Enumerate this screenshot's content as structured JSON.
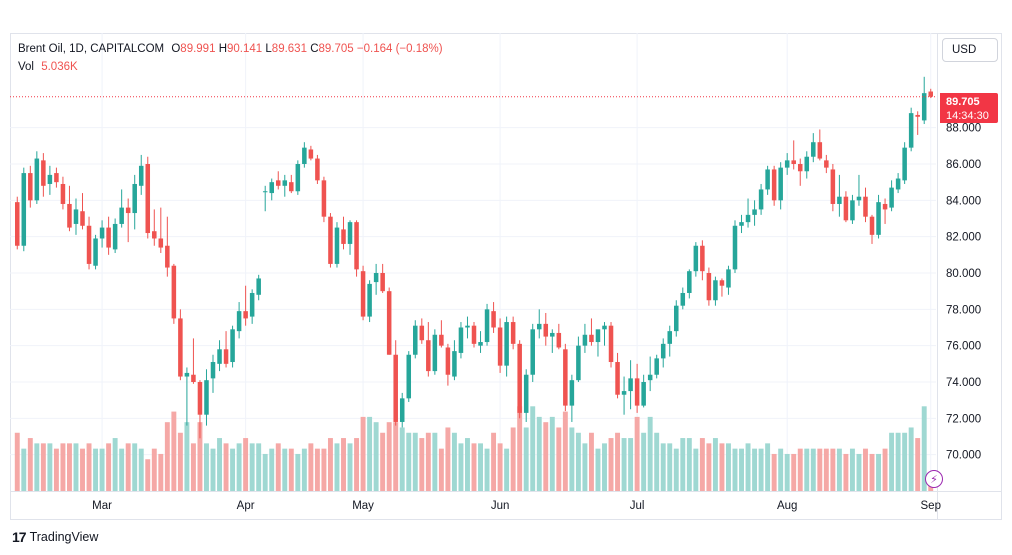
{
  "legend": {
    "symbol": "Brent Oil, 1D, CAPITALCOM",
    "o_label": "O",
    "o_value": "89.991",
    "h_label": "H",
    "h_value": "90.141",
    "l_label": "L",
    "l_value": "89.631",
    "c_label": "C",
    "c_value": "89.705",
    "change": "−0.164 (−0.18%)",
    "vol_label": "Vol",
    "vol_value": "5.036K"
  },
  "currency_button": "USD",
  "last_price": {
    "value": "89.705",
    "countdown": "14:34:30"
  },
  "brand": {
    "logo": "17",
    "name": "TradingView"
  },
  "colors": {
    "up": "#26a69a",
    "down": "#ef5350",
    "vol_up": "#9fd8d2",
    "vol_down": "#f5a8a6",
    "price_tag": "#f23645",
    "grid": "#f0f3fa"
  },
  "chart_data": {
    "type": "candlestick",
    "y_axis": {
      "min": 68,
      "max": 92,
      "ticks": [
        "70.000",
        "72.000",
        "74.000",
        "76.000",
        "78.000",
        "80.000",
        "82.000",
        "84.000",
        "86.000",
        "88.000"
      ]
    },
    "x_axis": {
      "ticks": [
        {
          "label": "Mar",
          "index": 13
        },
        {
          "label": "Apr",
          "index": 35
        },
        {
          "label": "May",
          "index": 53
        },
        {
          "label": "Jun",
          "index": 74
        },
        {
          "label": "Jul",
          "index": 95
        },
        {
          "label": "Aug",
          "index": 118
        },
        {
          "label": "Sep",
          "index": 140
        }
      ]
    },
    "candles_ohlcv": [
      [
        83.9,
        84.2,
        81.3,
        81.5,
        1.1
      ],
      [
        81.5,
        85.8,
        81.2,
        85.5,
        0.8
      ],
      [
        85.5,
        85.9,
        83.6,
        84.0,
        1.0
      ],
      [
        84.0,
        86.7,
        83.8,
        86.3,
        0.9
      ],
      [
        86.2,
        86.6,
        84.2,
        84.8,
        0.9
      ],
      [
        84.9,
        85.9,
        84.3,
        85.4,
        0.9
      ],
      [
        85.5,
        85.8,
        84.7,
        85.0,
        0.8
      ],
      [
        84.9,
        85.3,
        83.5,
        83.8,
        0.9
      ],
      [
        83.8,
        84.8,
        82.3,
        82.5,
        0.9
      ],
      [
        82.7,
        84.1,
        82.1,
        83.5,
        0.9
      ],
      [
        83.4,
        84.4,
        82.4,
        82.6,
        0.8
      ],
      [
        82.6,
        83.1,
        80.2,
        80.5,
        0.9
      ],
      [
        80.4,
        82.1,
        80.2,
        81.9,
        0.8
      ],
      [
        81.9,
        82.9,
        81.4,
        82.5,
        0.8
      ],
      [
        82.5,
        83.1,
        81.0,
        81.4,
        0.9
      ],
      [
        81.3,
        83.0,
        81.1,
        82.7,
        1.0
      ],
      [
        82.7,
        84.6,
        82.5,
        83.6,
        0.8
      ],
      [
        83.6,
        84.1,
        81.7,
        83.3,
        0.9
      ],
      [
        83.3,
        85.4,
        82.4,
        84.9,
        0.9
      ],
      [
        84.8,
        86.5,
        84.3,
        85.9,
        0.8
      ],
      [
        86.0,
        86.4,
        81.9,
        82.2,
        0.6
      ],
      [
        82.3,
        83.5,
        81.5,
        81.9,
        0.8
      ],
      [
        81.9,
        83.6,
        81.1,
        81.4,
        0.7
      ],
      [
        81.5,
        83.1,
        79.8,
        80.3,
        1.3
      ],
      [
        80.4,
        80.5,
        77.2,
        77.5,
        1.5
      ],
      [
        77.5,
        78.0,
        74.1,
        74.3,
        1.1
      ],
      [
        74.3,
        74.8,
        71.6,
        74.5,
        1.3
      ],
      [
        74.4,
        76.4,
        73.9,
        74.0,
        0.9
      ],
      [
        74.0,
        74.1,
        70.9,
        72.2,
        1.3
      ],
      [
        72.2,
        74.7,
        71.6,
        74.1,
        0.9
      ],
      [
        74.2,
        75.5,
        73.4,
        75.1,
        0.8
      ],
      [
        75.0,
        76.3,
        74.6,
        75.8,
        1.0
      ],
      [
        75.8,
        76.8,
        74.8,
        75.0,
        0.9
      ],
      [
        75.1,
        77.1,
        74.8,
        76.9,
        0.8
      ],
      [
        76.8,
        78.4,
        76.4,
        77.9,
        0.9
      ],
      [
        77.9,
        79.3,
        77.1,
        77.5,
        1.0
      ],
      [
        77.6,
        79.1,
        77.2,
        78.9,
        0.9
      ],
      [
        78.8,
        79.9,
        78.5,
        79.7,
        0.9
      ],
      [
        84.5,
        84.8,
        83.4,
        84.5,
        0.7
      ],
      [
        84.4,
        85.2,
        84.0,
        85.0,
        0.8
      ],
      [
        85.1,
        85.6,
        84.6,
        84.8,
        0.9
      ],
      [
        84.8,
        85.4,
        84.2,
        85.1,
        0.8
      ],
      [
        85.0,
        85.4,
        84.4,
        84.5,
        0.8
      ],
      [
        84.5,
        86.2,
        84.3,
        86.0,
        0.7
      ],
      [
        86.0,
        87.2,
        85.8,
        86.9,
        0.8
      ],
      [
        86.8,
        87.0,
        86.2,
        86.3,
        0.9
      ],
      [
        86.3,
        86.5,
        84.9,
        85.1,
        0.8
      ],
      [
        85.1,
        85.3,
        82.8,
        83.1,
        0.8
      ],
      [
        83.1,
        83.3,
        80.3,
        80.5,
        1.0
      ],
      [
        80.5,
        82.8,
        80.3,
        82.5,
        0.9
      ],
      [
        82.4,
        83.1,
        81.3,
        81.6,
        1.0
      ],
      [
        81.6,
        82.9,
        81.0,
        82.8,
        0.9
      ],
      [
        82.8,
        82.9,
        79.8,
        80.2,
        1.0
      ],
      [
        80.1,
        80.4,
        77.4,
        77.6,
        1.4
      ],
      [
        77.6,
        79.6,
        77.3,
        79.4,
        1.4
      ],
      [
        79.5,
        80.5,
        78.8,
        80.0,
        1.3
      ],
      [
        80.0,
        80.5,
        78.9,
        79.0,
        1.1
      ],
      [
        79.0,
        79.2,
        75.5,
        75.5,
        1.3
      ],
      [
        75.5,
        76.3,
        71.6,
        71.8,
        1.3
      ],
      [
        71.8,
        73.4,
        71.5,
        73.1,
        1.2
      ],
      [
        73.1,
        75.7,
        72.9,
        75.5,
        1.1
      ],
      [
        75.5,
        77.4,
        75.3,
        77.1,
        1.1
      ],
      [
        77.1,
        77.5,
        76.1,
        76.3,
        1.0
      ],
      [
        76.3,
        77.3,
        74.3,
        74.6,
        1.1
      ],
      [
        74.6,
        76.9,
        74.4,
        76.6,
        1.1
      ],
      [
        76.6,
        77.4,
        75.9,
        76.0,
        0.8
      ],
      [
        75.9,
        76.1,
        73.8,
        74.4,
        1.2
      ],
      [
        74.3,
        76.3,
        74.1,
        75.7,
        1.1
      ],
      [
        75.6,
        77.3,
        75.3,
        77.0,
        0.9
      ],
      [
        77.0,
        77.6,
        76.4,
        77.1,
        1.0
      ],
      [
        77.1,
        77.3,
        75.9,
        76.1,
        0.9
      ],
      [
        76.0,
        76.8,
        75.6,
        76.2,
        0.9
      ],
      [
        76.2,
        78.3,
        76.0,
        78.0,
        0.8
      ],
      [
        77.9,
        78.4,
        76.7,
        77.0,
        1.1
      ],
      [
        77.0,
        77.5,
        74.5,
        74.9,
        0.9
      ],
      [
        74.9,
        77.6,
        74.3,
        77.3,
        0.8
      ],
      [
        77.3,
        77.6,
        75.8,
        76.1,
        1.2
      ],
      [
        76.1,
        76.3,
        72.0,
        72.3,
        1.6
      ],
      [
        72.3,
        74.7,
        71.8,
        74.4,
        1.2
      ],
      [
        74.4,
        77.2,
        74.0,
        76.9,
        1.6
      ],
      [
        76.9,
        78.0,
        76.4,
        77.2,
        1.4
      ],
      [
        77.2,
        77.8,
        76.0,
        76.5,
        1.3
      ],
      [
        76.5,
        76.9,
        75.6,
        76.7,
        1.4
      ],
      [
        76.7,
        77.2,
        75.8,
        75.9,
        1.2
      ],
      [
        75.8,
        76.1,
        72.4,
        72.7,
        1.5
      ],
      [
        72.7,
        74.4,
        71.8,
        74.1,
        1.2
      ],
      [
        74.1,
        76.5,
        74.0,
        76.0,
        1.1
      ],
      [
        76.0,
        77.2,
        75.6,
        76.6,
        0.9
      ],
      [
        76.6,
        77.5,
        76.0,
        76.2,
        1.1
      ],
      [
        76.2,
        76.5,
        75.4,
        76.9,
        0.8
      ],
      [
        76.9,
        77.3,
        76.0,
        77.1,
        0.9
      ],
      [
        77.1,
        77.3,
        74.8,
        75.1,
        1.0
      ],
      [
        75.1,
        75.6,
        73.1,
        73.3,
        1.1
      ],
      [
        73.3,
        74.3,
        72.2,
        73.5,
        1.0
      ],
      [
        73.5,
        75.2,
        72.5,
        74.2,
        1.0
      ],
      [
        74.2,
        75.0,
        72.3,
        72.7,
        1.4
      ],
      [
        72.7,
        74.4,
        72.6,
        74.0,
        1.1
      ],
      [
        74.1,
        75.4,
        73.5,
        74.4,
        1.4
      ],
      [
        74.4,
        75.5,
        74.2,
        75.3,
        1.1
      ],
      [
        75.3,
        76.4,
        74.8,
        76.1,
        0.9
      ],
      [
        76.1,
        77.1,
        75.4,
        76.8,
        0.9
      ],
      [
        76.8,
        78.5,
        76.5,
        78.2,
        0.8
      ],
      [
        78.2,
        79.2,
        78.0,
        78.9,
        1.0
      ],
      [
        78.9,
        80.2,
        78.6,
        80.1,
        1.0
      ],
      [
        80.1,
        81.7,
        79.8,
        81.5,
        0.8
      ],
      [
        81.5,
        81.8,
        79.6,
        80.1,
        1.0
      ],
      [
        80.0,
        80.3,
        78.2,
        78.5,
        0.9
      ],
      [
        78.5,
        79.8,
        78.2,
        79.6,
        1.0
      ],
      [
        79.6,
        79.7,
        78.7,
        79.3,
        0.9
      ],
      [
        79.2,
        80.4,
        78.8,
        80.2,
        0.9
      ],
      [
        80.2,
        82.9,
        80.0,
        82.6,
        0.8
      ],
      [
        82.6,
        83.2,
        82.2,
        82.8,
        0.8
      ],
      [
        82.8,
        84.1,
        82.5,
        83.2,
        0.9
      ],
      [
        83.2,
        84.0,
        82.6,
        83.5,
        0.8
      ],
      [
        83.5,
        84.9,
        83.2,
        84.6,
        0.8
      ],
      [
        84.6,
        85.9,
        84.3,
        85.7,
        0.9
      ],
      [
        85.7,
        85.9,
        83.7,
        84.0,
        0.7
      ],
      [
        84.0,
        86.1,
        83.5,
        85.8,
        0.8
      ],
      [
        85.8,
        86.6,
        85.4,
        86.2,
        0.7
      ],
      [
        86.2,
        87.3,
        85.7,
        86.0,
        0.7
      ],
      [
        86.0,
        86.3,
        84.8,
        85.6,
        0.8
      ],
      [
        85.6,
        86.7,
        85.2,
        86.4,
        0.8
      ],
      [
        86.4,
        87.7,
        86.1,
        87.2,
        0.8
      ],
      [
        87.2,
        87.9,
        86.2,
        86.3,
        0.8
      ],
      [
        86.2,
        86.5,
        85.5,
        85.8,
        0.8
      ],
      [
        85.7,
        86.0,
        83.4,
        83.8,
        0.8
      ],
      [
        83.8,
        85.4,
        83.1,
        84.2,
        0.8
      ],
      [
        84.2,
        84.5,
        82.8,
        82.9,
        0.7
      ],
      [
        82.9,
        84.3,
        82.7,
        84.0,
        0.8
      ],
      [
        84.0,
        85.4,
        83.7,
        84.2,
        0.7
      ],
      [
        84.2,
        84.7,
        82.8,
        83.1,
        0.8
      ],
      [
        83.1,
        83.2,
        81.6,
        82.1,
        0.7
      ],
      [
        82.1,
        84.3,
        81.9,
        83.9,
        0.7
      ],
      [
        83.8,
        84.1,
        82.7,
        83.5,
        0.8
      ],
      [
        83.6,
        85.1,
        83.4,
        84.7,
        1.1
      ],
      [
        84.6,
        85.5,
        84.4,
        85.2,
        1.1
      ],
      [
        85.1,
        87.2,
        84.9,
        86.9,
        1.1
      ],
      [
        86.9,
        89.1,
        86.7,
        88.8,
        1.2
      ],
      [
        88.7,
        88.9,
        87.6,
        88.6,
        1.0
      ],
      [
        88.4,
        90.8,
        88.2,
        89.9,
        1.6
      ],
      [
        89.99,
        90.14,
        89.63,
        89.705,
        0.2
      ]
    ]
  }
}
